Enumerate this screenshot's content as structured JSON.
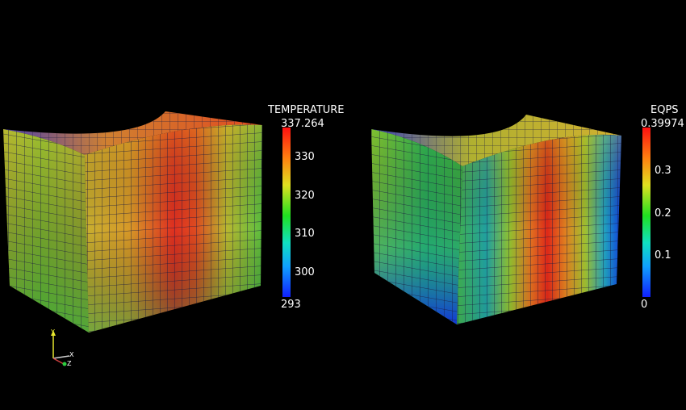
{
  "colorbars": [
    {
      "title": "TEMPERATURE",
      "max_label": "337.264",
      "min_label": "293",
      "ticks": [
        "330",
        "320",
        "310",
        "300"
      ]
    },
    {
      "title": "EQPS",
      "max_label": "0.39974",
      "min_label": "0",
      "ticks": [
        "0.3",
        "0.2",
        "0.1"
      ]
    }
  ],
  "axes": {
    "y": "Y",
    "x": "X",
    "z": "Z"
  },
  "colors": {
    "background": "#000000",
    "mesh_line": "#1a1a40",
    "axis_y": "#e6e62e",
    "axis_x": "#e0e0e0",
    "axis_z": "#2ecc40"
  }
}
